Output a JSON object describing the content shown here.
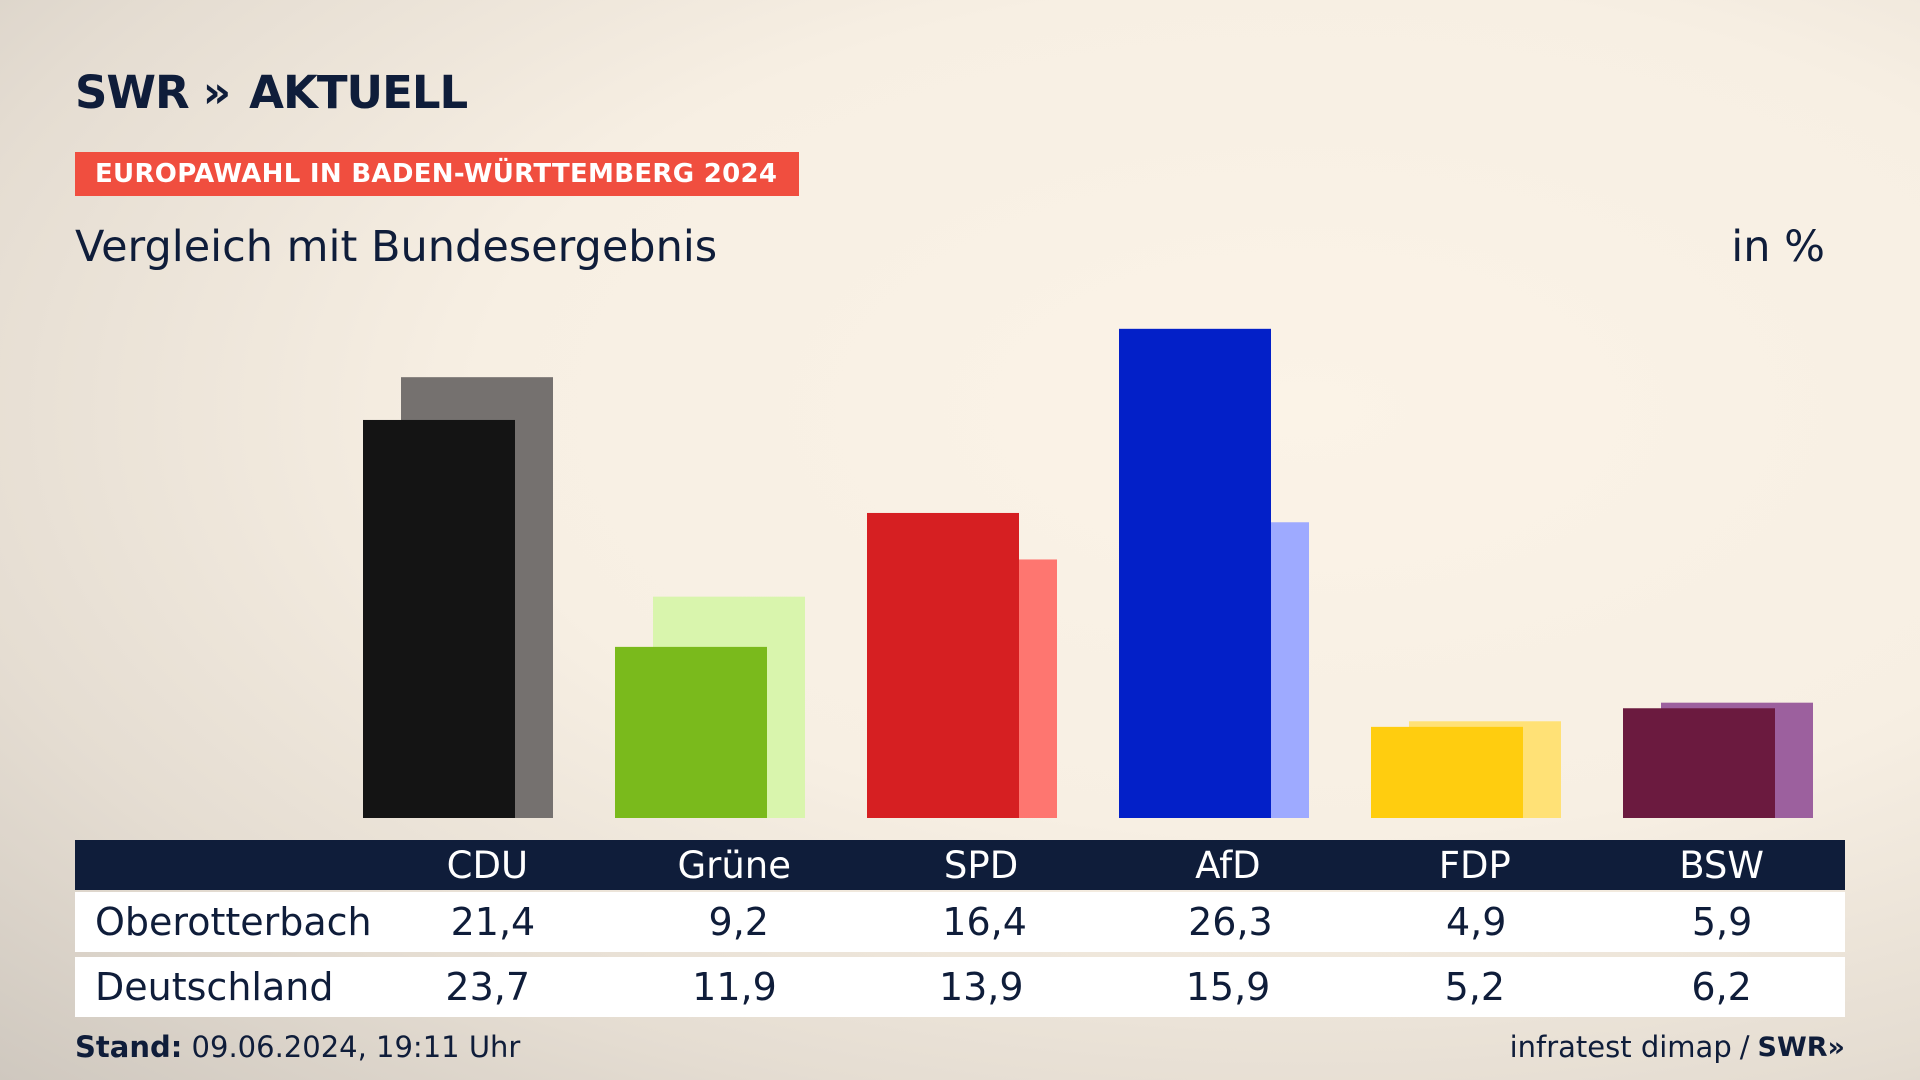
{
  "brand": {
    "logo_swr": "SWR",
    "logo_chevrons": "»",
    "logo_text": "AKTUELL"
  },
  "banner": "EUROPAWAHL IN BADEN-WÜRTTEMBERG 2024",
  "subtitle": "Vergleich mit Bundesergebnis",
  "unit": "in %",
  "chart_data": {
    "type": "bar",
    "title": "Vergleich mit Bundesergebnis",
    "ylabel": "in %",
    "ylim": [
      0,
      27
    ],
    "grid": false,
    "categories": [
      "CDU",
      "Grüne",
      "SPD",
      "AfD",
      "FDP",
      "BSW"
    ],
    "series": [
      {
        "name": "Oberotterbach",
        "values": [
          21.4,
          9.2,
          16.4,
          26.3,
          4.9,
          5.9
        ],
        "labels": [
          "21,4",
          "9,2",
          "16,4",
          "26,3",
          "4,9",
          "5,9"
        ],
        "colors": [
          "#141414",
          "#7aba1c",
          "#d61f22",
          "#0320c8",
          "#ffcd0f",
          "#6b1a3f"
        ]
      },
      {
        "name": "Deutschland",
        "values": [
          23.7,
          11.9,
          13.9,
          15.9,
          5.2,
          6.2
        ],
        "labels": [
          "23,7",
          "11,9",
          "13,9",
          "15,9",
          "5,2",
          "6,2"
        ],
        "colors": [
          "#75716f",
          "#d9f5ad",
          "#fe7670",
          "#9eaaff",
          "#ffe176",
          "#9c609e"
        ]
      }
    ]
  },
  "footer": {
    "stand_label": "Stand:",
    "stand_value": "09.06.2024, 19:11 Uhr",
    "source": "infratest dimap",
    "separator": "/",
    "source_brand": "SWR»"
  }
}
